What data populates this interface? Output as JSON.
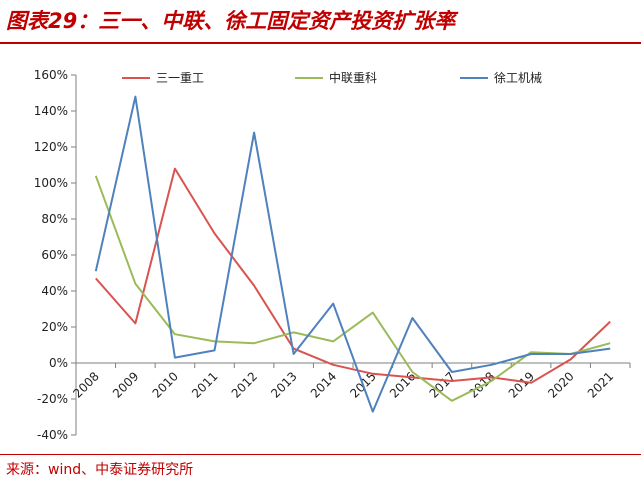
{
  "header": {
    "title": "图表29：三一、中联、徐工固定资产投资扩张率"
  },
  "footer": {
    "source": "来源：wind、中泰证券研究所"
  },
  "chart_data": {
    "type": "line",
    "title": "",
    "xlabel": "",
    "ylabel": "",
    "categories": [
      "2008",
      "2009",
      "2010",
      "2011",
      "2012",
      "2013",
      "2014",
      "2015",
      "2016",
      "2017",
      "2018",
      "2019",
      "2020",
      "2021"
    ],
    "ylim": [
      -40,
      160
    ],
    "yticks": [
      "-40%",
      "-20%",
      "0%",
      "20%",
      "40%",
      "60%",
      "80%",
      "100%",
      "120%",
      "140%",
      "160%"
    ],
    "ytick_values": [
      -40,
      -20,
      0,
      20,
      40,
      60,
      80,
      100,
      120,
      140,
      160
    ],
    "grid": false,
    "legend_position": "top",
    "series": [
      {
        "name": "三一重工",
        "color": "#d9534f",
        "values": [
          47,
          22,
          108,
          72,
          43,
          8,
          -1,
          -6,
          -8,
          -10,
          -8,
          -11,
          2,
          23
        ]
      },
      {
        "name": "中联重科",
        "color": "#9bbb59",
        "values": [
          104,
          44,
          16,
          12,
          11,
          17,
          12,
          28,
          -5,
          -21,
          -10,
          6,
          5,
          11
        ]
      },
      {
        "name": "徐工机械",
        "color": "#4f81bd",
        "values": [
          51,
          148,
          3,
          7,
          128,
          5,
          33,
          -27,
          25,
          -5,
          -1,
          5,
          5,
          8
        ]
      }
    ]
  }
}
